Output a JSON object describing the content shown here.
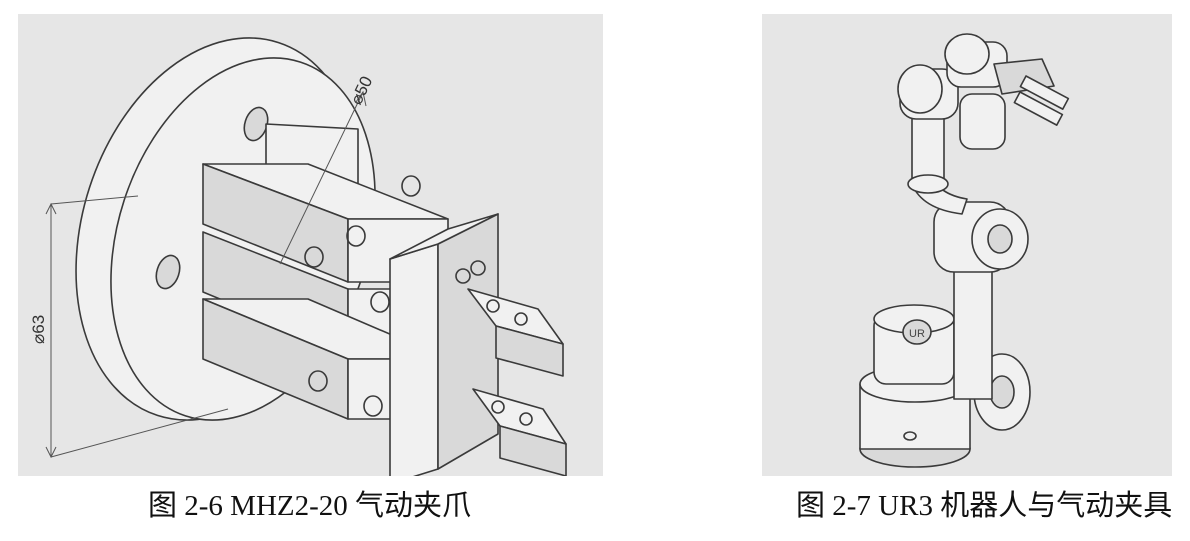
{
  "figures": [
    {
      "caption": "图 2-6 MHZ2-20 气动夹爪",
      "dimension_labels": [
        "⌀50",
        "⌀63"
      ]
    },
    {
      "caption": "图 2-7 UR3 机器人与气动夹具",
      "logo_text": "UR"
    }
  ]
}
